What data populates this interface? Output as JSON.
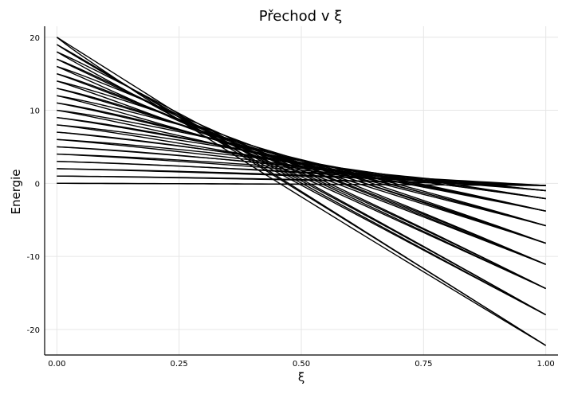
{
  "chart_data": {
    "type": "line",
    "title": "Přechod v ξ",
    "xlabel": "ξ",
    "ylabel": "Energie",
    "xlim": [
      -0.025,
      1.025
    ],
    "ylim": [
      -23.5,
      21.5
    ],
    "xticks": [
      0.0,
      0.25,
      0.5,
      0.75,
      1.0
    ],
    "xtick_labels": [
      "0.00",
      "0.25",
      "0.50",
      "0.75",
      "1.00"
    ],
    "yticks": [
      20,
      10,
      0,
      -10,
      -20
    ],
    "ytick_labels": [
      "20",
      "10",
      "0",
      "-10",
      "-20"
    ],
    "grid": true,
    "legend": "none",
    "line_color": "#000000",
    "levels_at_xi_0": [
      0,
      1,
      2,
      3,
      4,
      5,
      6,
      7,
      8,
      9,
      10,
      11,
      12,
      13,
      14,
      15,
      16,
      17,
      18,
      19,
      20
    ],
    "end_values_at_xi_1": [
      -22.2,
      -18.0,
      -14.4,
      -11.1,
      -8.2,
      -5.8,
      -3.8,
      -2.1,
      -1.0,
      -0.3
    ],
    "lines_per_end_value": 2,
    "series_description_note": ""
  }
}
